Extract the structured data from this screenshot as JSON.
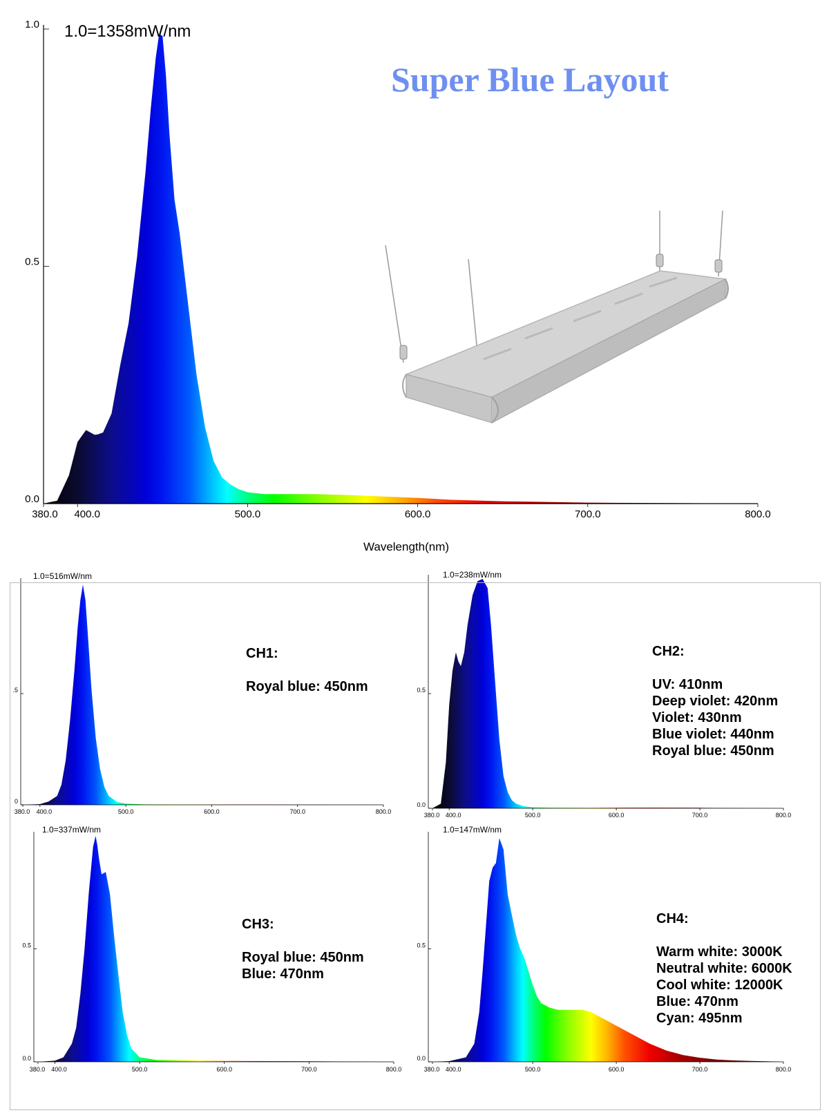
{
  "page_title": "Super Blue Layout",
  "colors": {
    "title": "#6f8ff0",
    "axis": "#000000",
    "frame": "#bbbbbb"
  },
  "fixture_image": "gray-led-light-fixture-on-hanging-cables",
  "chart_data": [
    {
      "id": "total",
      "type": "area",
      "title": "",
      "scale_label": "1.0=1358mW/nm",
      "xlabel": "Wavelength(nm)",
      "ylabel": "",
      "xlim": [
        380,
        800
      ],
      "ylim": [
        0,
        1.0
      ],
      "x_ticks": [
        "380.0",
        "400.0",
        "500.0",
        "600.0",
        "700.0",
        "800.0"
      ],
      "y_ticks": [
        "0.0",
        "0.5",
        "1.0"
      ],
      "fill": "spectral-gradient",
      "x": [
        380,
        385,
        388,
        395,
        400,
        402,
        405,
        410,
        412,
        415,
        420,
        425,
        430,
        435,
        440,
        443,
        446,
        448,
        450,
        452,
        454,
        457,
        460,
        465,
        470,
        475,
        480,
        485,
        490,
        495,
        500,
        510,
        520,
        540,
        560,
        580,
        600,
        620,
        650,
        700,
        750,
        800
      ],
      "y": [
        0.0,
        0.004,
        0.006,
        0.06,
        0.13,
        0.14,
        0.155,
        0.145,
        0.146,
        0.15,
        0.19,
        0.29,
        0.38,
        0.52,
        0.7,
        0.83,
        0.94,
        0.99,
        0.985,
        0.9,
        0.78,
        0.64,
        0.57,
        0.42,
        0.27,
        0.16,
        0.09,
        0.055,
        0.04,
        0.03,
        0.024,
        0.02,
        0.02,
        0.02,
        0.018,
        0.015,
        0.012,
        0.008,
        0.005,
        0.002,
        0.001,
        0.0
      ]
    },
    {
      "id": "ch1",
      "type": "area",
      "title": "",
      "scale_label": "1.0=516mW/nm",
      "xlabel": "",
      "xlim": [
        380,
        800
      ],
      "ylim": [
        0,
        1.0
      ],
      "x_ticks": [
        "380.0",
        "400.0",
        "500.0",
        "600.0",
        "700.0",
        "800.0"
      ],
      "y_ticks": [
        ".5",
        "0"
      ],
      "fill": "spectral-gradient",
      "x": [
        380,
        400,
        410,
        420,
        425,
        430,
        435,
        440,
        444,
        447,
        450,
        453,
        456,
        460,
        465,
        470,
        475,
        480,
        490,
        500,
        520,
        600,
        700,
        800
      ],
      "y": [
        0,
        0.003,
        0.015,
        0.04,
        0.09,
        0.2,
        0.38,
        0.6,
        0.8,
        0.92,
        0.99,
        0.92,
        0.75,
        0.52,
        0.3,
        0.16,
        0.08,
        0.04,
        0.012,
        0.005,
        0.002,
        0.0015,
        0.001,
        0
      ]
    },
    {
      "id": "ch2",
      "type": "area",
      "title": "",
      "scale_label": "1.0=238mW/nm",
      "xlabel": "",
      "xlim": [
        380,
        800
      ],
      "ylim": [
        0,
        1.0
      ],
      "x_ticks": [
        "380.0",
        "400.0",
        "500.0",
        "600.0",
        "700.0",
        "800.0"
      ],
      "y_ticks": [
        "0.5",
        "0.0"
      ],
      "fill": "spectral-gradient",
      "x": [
        380,
        390,
        396,
        400,
        404,
        408,
        411,
        414,
        418,
        422,
        428,
        434,
        440,
        446,
        450,
        455,
        460,
        465,
        470,
        475,
        480,
        490,
        500,
        520,
        600,
        700,
        800
      ],
      "y": [
        0,
        0.02,
        0.2,
        0.45,
        0.6,
        0.68,
        0.64,
        0.62,
        0.68,
        0.8,
        0.93,
        0.99,
        1.0,
        0.96,
        0.8,
        0.55,
        0.3,
        0.14,
        0.07,
        0.035,
        0.02,
        0.008,
        0.004,
        0.002,
        0.003,
        0.002,
        0
      ]
    },
    {
      "id": "ch3",
      "type": "area",
      "title": "",
      "scale_label": "1.0=337mW/nm",
      "xlabel": "",
      "xlim": [
        380,
        800
      ],
      "ylim": [
        0,
        1.0
      ],
      "x_ticks": [
        "380.0",
        "400.0",
        "500.0",
        "600.0",
        "700.0",
        "800.0"
      ],
      "y_ticks": [
        "0.5",
        "0.0"
      ],
      "fill": "spectral-gradient",
      "x": [
        380,
        400,
        410,
        420,
        425,
        430,
        435,
        440,
        445,
        448,
        450,
        452,
        455,
        460,
        465,
        470,
        475,
        480,
        485,
        490,
        500,
        520,
        600,
        700,
        800
      ],
      "y": [
        0,
        0.005,
        0.02,
        0.08,
        0.15,
        0.3,
        0.5,
        0.75,
        0.95,
        1.0,
        0.96,
        0.9,
        0.83,
        0.84,
        0.74,
        0.55,
        0.38,
        0.22,
        0.12,
        0.06,
        0.02,
        0.008,
        0.004,
        0.002,
        0
      ]
    },
    {
      "id": "ch4",
      "type": "area",
      "title": "",
      "scale_label": "1.0=147mW/nm",
      "xlabel": "",
      "xlim": [
        380,
        800
      ],
      "ylim": [
        0,
        1.0
      ],
      "x_ticks": [
        "380.0",
        "400.0",
        "500.0",
        "600.0",
        "700.0",
        "800.0"
      ],
      "y_ticks": [
        "0.5",
        "0.0"
      ],
      "fill": "spectral-gradient",
      "x": [
        380,
        400,
        420,
        430,
        436,
        440,
        445,
        448,
        452,
        456,
        460,
        465,
        470,
        475,
        480,
        485,
        490,
        495,
        500,
        505,
        510,
        520,
        530,
        540,
        550,
        560,
        570,
        580,
        600,
        620,
        640,
        660,
        680,
        700,
        720,
        740,
        760,
        780,
        800
      ],
      "y": [
        0,
        0.003,
        0.02,
        0.08,
        0.22,
        0.4,
        0.65,
        0.8,
        0.86,
        0.88,
        0.99,
        0.94,
        0.74,
        0.65,
        0.56,
        0.5,
        0.46,
        0.4,
        0.34,
        0.29,
        0.26,
        0.24,
        0.23,
        0.23,
        0.23,
        0.23,
        0.22,
        0.2,
        0.16,
        0.12,
        0.08,
        0.05,
        0.03,
        0.018,
        0.01,
        0.006,
        0.004,
        0.002,
        0
      ]
    }
  ],
  "channels": [
    {
      "id": "ch1",
      "heading": "CH1:",
      "lines": [
        "Royal blue: 450nm"
      ]
    },
    {
      "id": "ch2",
      "heading": "CH2:",
      "lines": [
        "UV: 410nm",
        "Deep violet: 420nm",
        "Violet: 430nm",
        "Blue violet: 440nm",
        "Royal blue: 450nm"
      ]
    },
    {
      "id": "ch3",
      "heading": "CH3:",
      "lines": [
        "Royal blue: 450nm",
        "Blue: 470nm"
      ]
    },
    {
      "id": "ch4",
      "heading": "CH4:",
      "lines": [
        "Warm white: 3000K",
        "Neutral white: 6000K",
        "Cool white: 12000K",
        "Blue: 470nm",
        "Cyan: 495nm"
      ]
    }
  ]
}
